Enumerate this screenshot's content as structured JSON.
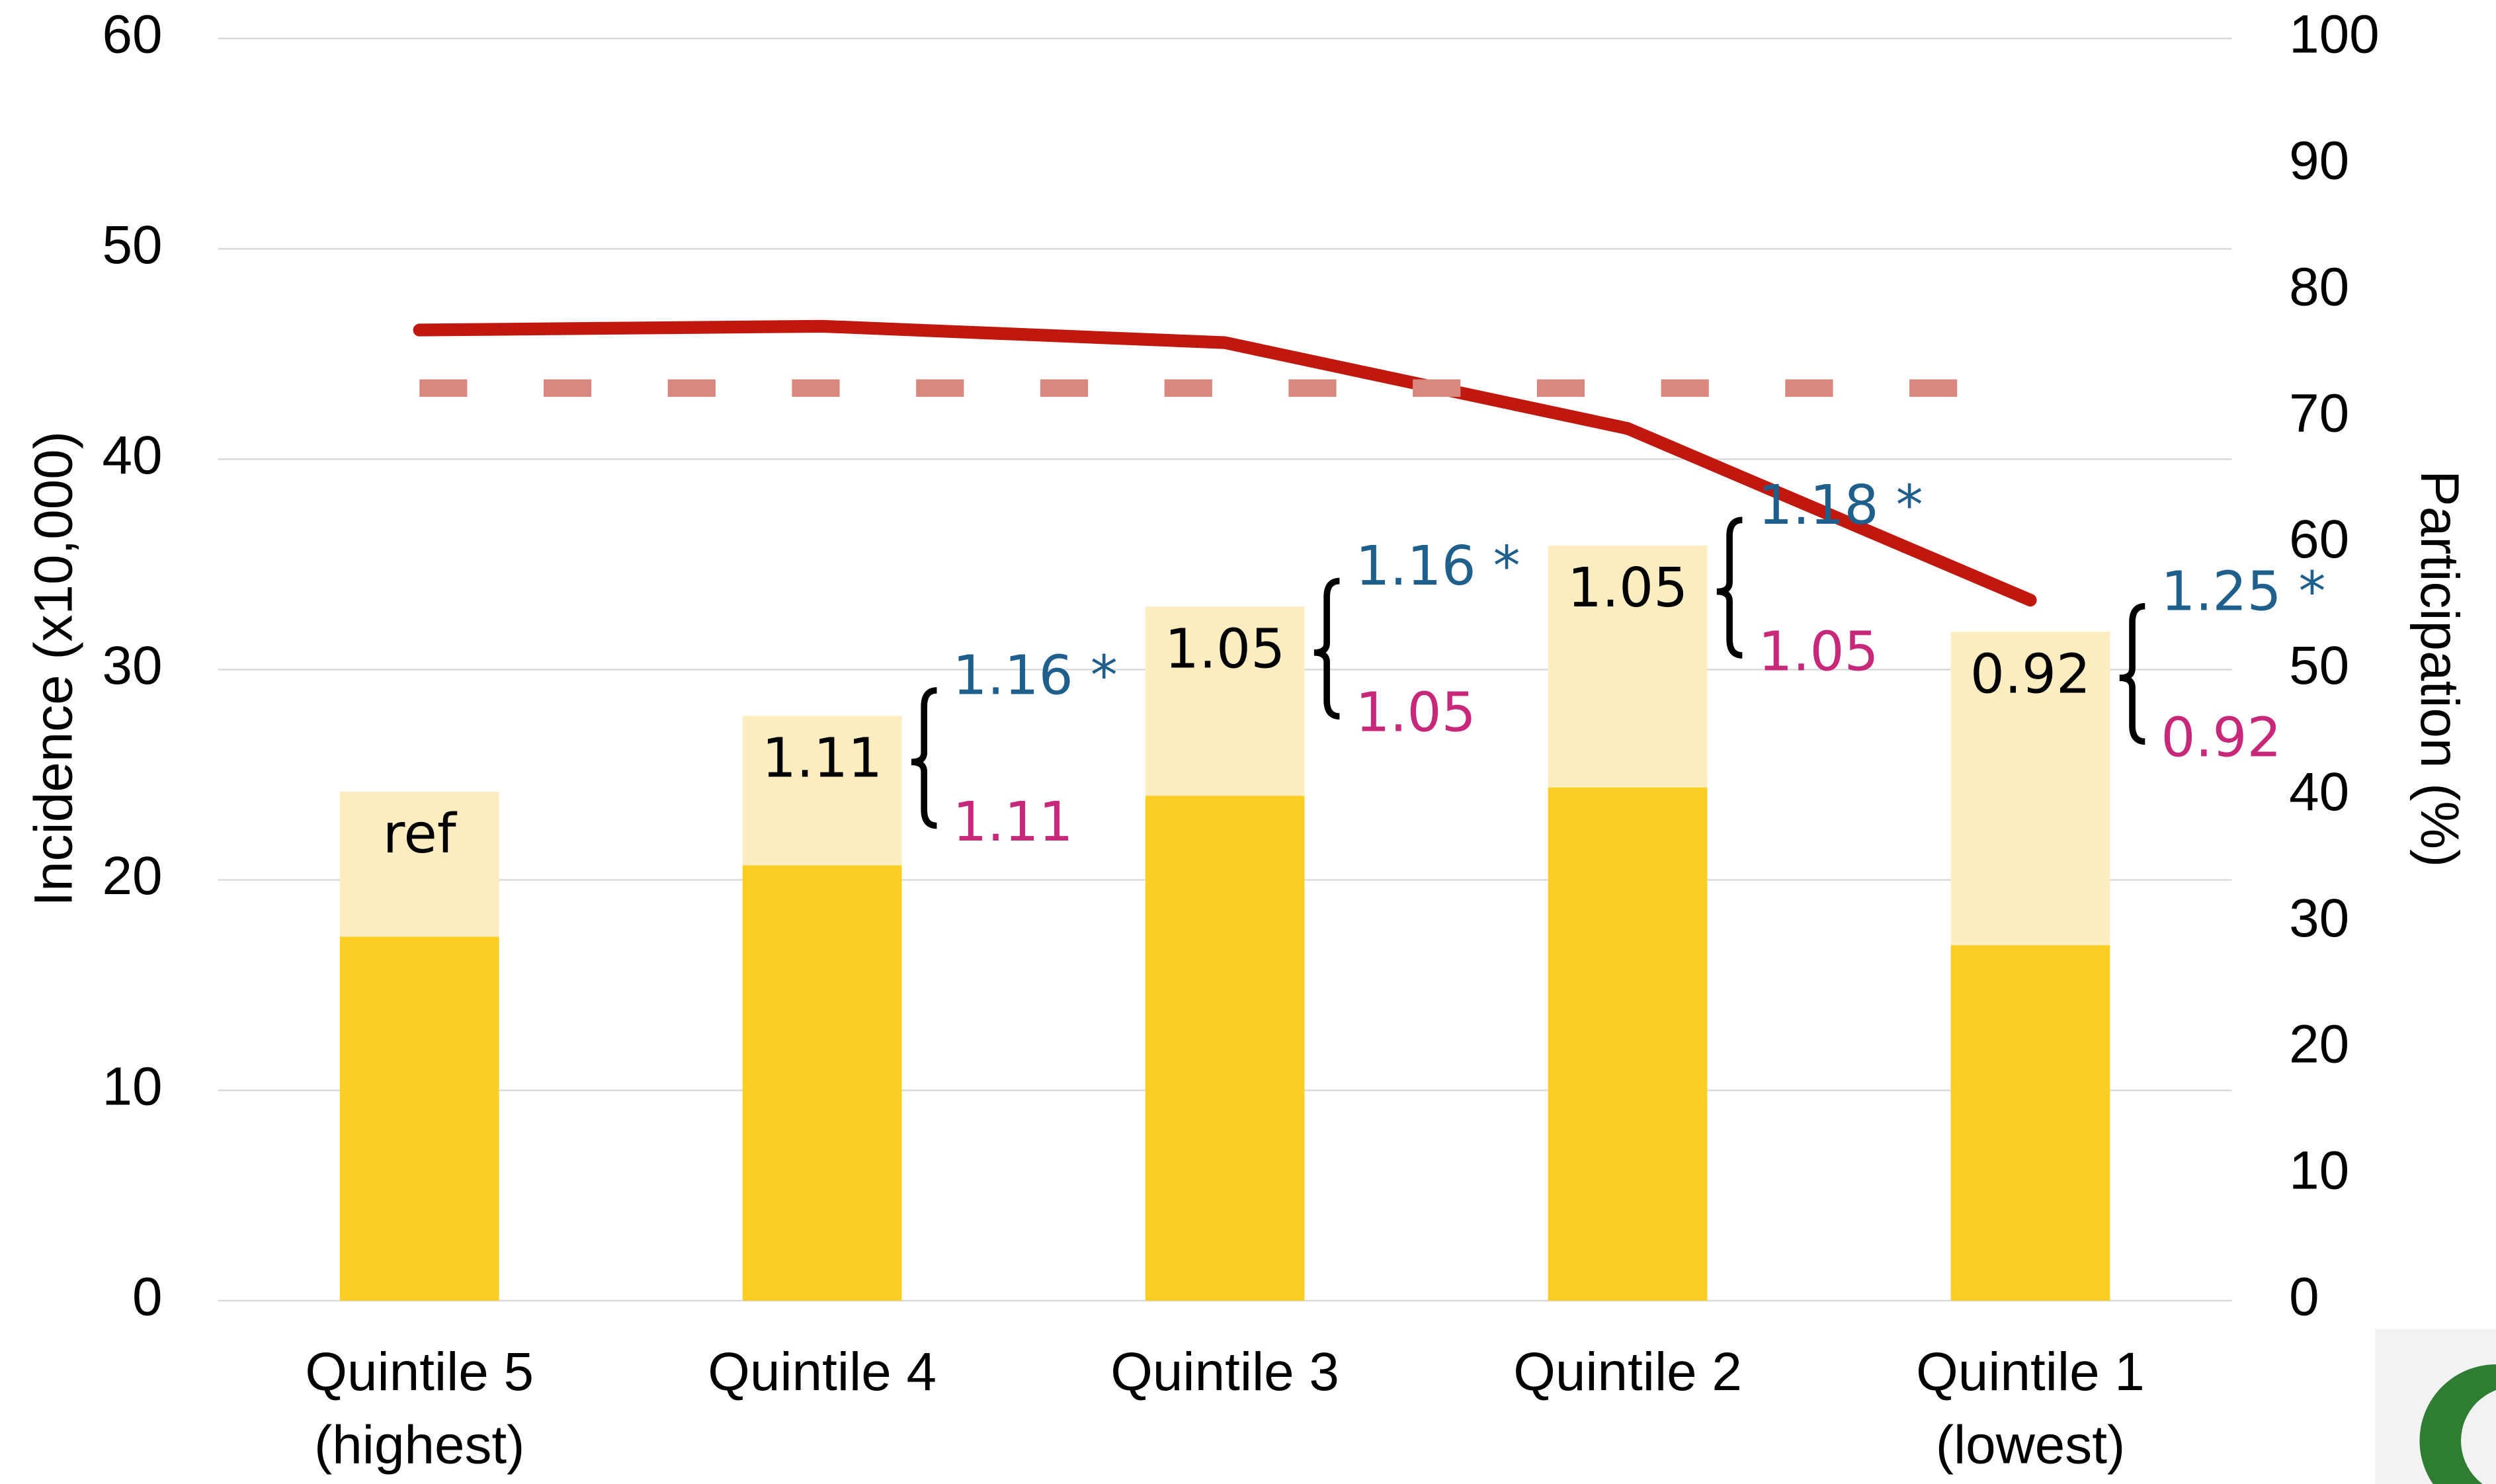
{
  "chart_data": {
    "type": "bar",
    "stacked": true,
    "categories": [
      [
        "Quintile 5",
        "(highest)"
      ],
      [
        "Quintile 4"
      ],
      [
        "Quintile 3"
      ],
      [
        "Quintile 2"
      ],
      [
        "Quintile 1",
        "(lowest)"
      ]
    ],
    "series": [
      {
        "color": "#fccd22",
        "values": [
          17.3,
          20.7,
          24.0,
          24.4,
          16.9
        ]
      },
      {
        "color": "#fdedc0",
        "values": [
          6.9,
          7.1,
          9.0,
          11.5,
          14.9
        ]
      },
      {
        "type": "line",
        "axis": "y2",
        "color": "#c0180e",
        "dashed": false,
        "values": [
          76.9,
          77.2,
          75.9,
          69.1,
          55.5
        ]
      },
      {
        "type": "line",
        "axis": "y2",
        "color": "#d98880",
        "dashed": true,
        "values": [
          72.3,
          72.3,
          72.3,
          72.3,
          72.3
        ]
      }
    ],
    "ylabel": "Incidence (x10,000)",
    "y2label": "Participation (%)",
    "ylim": [
      0,
      60
    ],
    "yticks": [
      0,
      10,
      20,
      30,
      40,
      50,
      60
    ],
    "y2lim": [
      0,
      100
    ],
    "y2ticks": [
      0,
      10,
      20,
      30,
      40,
      50,
      60,
      70,
      80,
      90,
      100
    ],
    "grid": true,
    "bar_labels": [
      "ref",
      "1.11",
      "1.05",
      "1.05",
      "0.92"
    ],
    "upper_labels": [
      null,
      "1.16 *",
      "1.16 *",
      "1.18 *",
      "1.25 *"
    ],
    "lower_labels": [
      null,
      "1.11",
      "1.05",
      "1.05",
      "0.92"
    ],
    "upper_color": "#1f5f8b",
    "lower_color": "#c8287a"
  }
}
